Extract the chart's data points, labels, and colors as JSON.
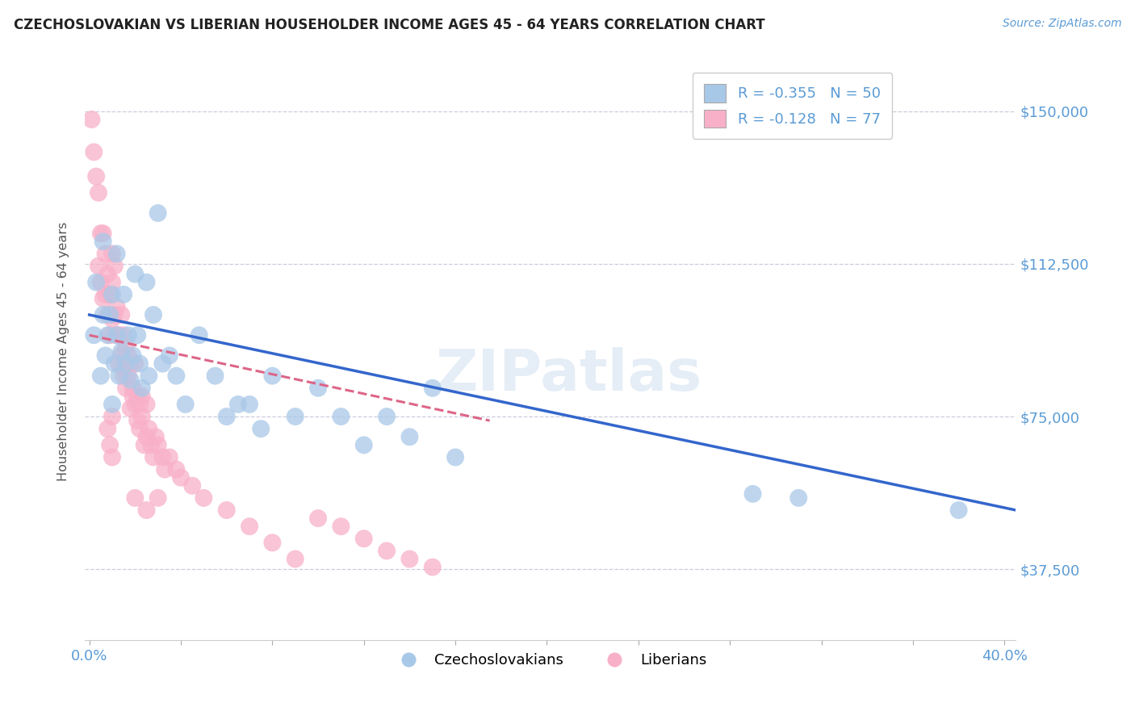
{
  "title": "CZECHOSLOVAKIAN VS LIBERIAN HOUSEHOLDER INCOME AGES 45 - 64 YEARS CORRELATION CHART",
  "source": "Source: ZipAtlas.com",
  "ylabel": "Householder Income Ages 45 - 64 years",
  "xlim_min": -0.002,
  "xlim_max": 0.405,
  "ylim_min": 20000,
  "ylim_max": 162000,
  "yticks": [
    37500,
    75000,
    112500,
    150000
  ],
  "ytick_labels": [
    "$37,500",
    "$75,000",
    "$112,500",
    "$150,000"
  ],
  "xtick_positions": [
    0.0,
    0.04,
    0.08,
    0.12,
    0.16,
    0.2,
    0.24,
    0.28,
    0.32,
    0.36,
    0.4
  ],
  "xlabels_show": [
    "0.0%",
    "40.0%"
  ],
  "xlabels_positions": [
    0.0,
    0.4
  ],
  "background_color": "#ffffff",
  "grid_color": "#ccccdd",
  "blue_color": "#a8c8e8",
  "pink_color": "#f8b0c8",
  "blue_line_color": "#3366cc",
  "pink_line_color": "#dd6688",
  "axis_color": "#5b9bd5",
  "watermark": "ZIPatlas",
  "legend_R_blue": "-0.355",
  "legend_N_blue": "50",
  "legend_R_pink": "-0.128",
  "legend_N_pink": "77",
  "blue_scatter_x": [
    0.002,
    0.003,
    0.005,
    0.006,
    0.006,
    0.007,
    0.008,
    0.009,
    0.01,
    0.01,
    0.011,
    0.012,
    0.012,
    0.013,
    0.014,
    0.015,
    0.016,
    0.017,
    0.018,
    0.019,
    0.02,
    0.021,
    0.022,
    0.023,
    0.025,
    0.026,
    0.028,
    0.03,
    0.032,
    0.035,
    0.038,
    0.042,
    0.048,
    0.055,
    0.06,
    0.065,
    0.07,
    0.075,
    0.08,
    0.09,
    0.1,
    0.11,
    0.12,
    0.13,
    0.14,
    0.15,
    0.16,
    0.29,
    0.31,
    0.38
  ],
  "blue_scatter_y": [
    95000,
    108000,
    85000,
    100000,
    118000,
    90000,
    95000,
    100000,
    78000,
    105000,
    88000,
    95000,
    115000,
    85000,
    91000,
    105000,
    88000,
    95000,
    84000,
    90000,
    110000,
    95000,
    88000,
    82000,
    108000,
    85000,
    100000,
    125000,
    88000,
    90000,
    85000,
    78000,
    95000,
    85000,
    75000,
    78000,
    78000,
    72000,
    85000,
    75000,
    82000,
    75000,
    68000,
    75000,
    70000,
    82000,
    65000,
    56000,
    55000,
    52000
  ],
  "pink_scatter_x": [
    0.001,
    0.002,
    0.003,
    0.004,
    0.004,
    0.005,
    0.005,
    0.006,
    0.006,
    0.007,
    0.007,
    0.008,
    0.008,
    0.009,
    0.009,
    0.01,
    0.01,
    0.01,
    0.011,
    0.011,
    0.012,
    0.012,
    0.013,
    0.013,
    0.014,
    0.014,
    0.015,
    0.015,
    0.015,
    0.016,
    0.016,
    0.017,
    0.017,
    0.018,
    0.018,
    0.019,
    0.019,
    0.02,
    0.02,
    0.021,
    0.021,
    0.022,
    0.022,
    0.023,
    0.023,
    0.024,
    0.025,
    0.025,
    0.026,
    0.027,
    0.028,
    0.029,
    0.03,
    0.032,
    0.033,
    0.035,
    0.038,
    0.04,
    0.045,
    0.05,
    0.06,
    0.07,
    0.08,
    0.09,
    0.1,
    0.11,
    0.12,
    0.13,
    0.14,
    0.15,
    0.02,
    0.025,
    0.03,
    0.008,
    0.009,
    0.01,
    0.01
  ],
  "pink_scatter_y": [
    148000,
    140000,
    134000,
    112000,
    130000,
    120000,
    108000,
    120000,
    104000,
    115000,
    105000,
    110000,
    100000,
    105000,
    95000,
    108000,
    99000,
    115000,
    100000,
    112000,
    95000,
    102000,
    95000,
    88000,
    90000,
    100000,
    85000,
    95000,
    87000,
    92000,
    82000,
    85000,
    90000,
    77000,
    88000,
    80000,
    82000,
    78000,
    88000,
    74000,
    80000,
    78000,
    72000,
    80000,
    75000,
    68000,
    78000,
    70000,
    72000,
    68000,
    65000,
    70000,
    68000,
    65000,
    62000,
    65000,
    62000,
    60000,
    58000,
    55000,
    52000,
    48000,
    44000,
    40000,
    50000,
    48000,
    45000,
    42000,
    40000,
    38000,
    55000,
    52000,
    55000,
    72000,
    68000,
    65000,
    75000
  ]
}
